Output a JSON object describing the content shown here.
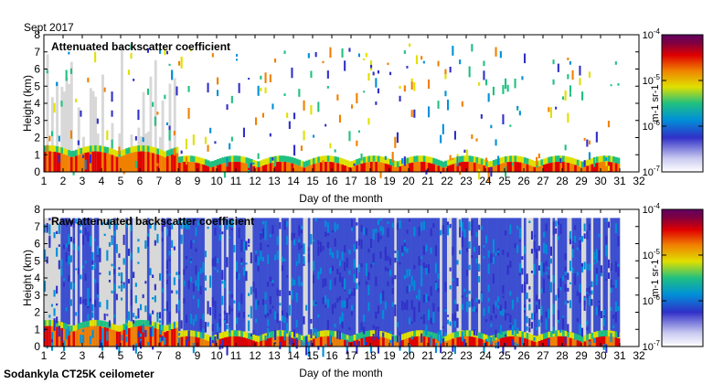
{
  "header": {
    "month_label": "Sept 2017"
  },
  "footer": {
    "instrument_label": "Sodankyla CT25K ceilometer"
  },
  "chart_data": [
    {
      "type": "heatmap",
      "title": "Attenuated backscatter coefficient",
      "xlabel": "Day of the month",
      "ylabel": "Height (km)",
      "xlim": [
        1,
        32
      ],
      "ylim": [
        0,
        8
      ],
      "xticks": [
        1,
        2,
        3,
        4,
        5,
        6,
        7,
        8,
        9,
        10,
        11,
        12,
        13,
        14,
        15,
        16,
        17,
        18,
        19,
        20,
        21,
        22,
        23,
        24,
        25,
        26,
        27,
        28,
        29,
        30,
        31,
        32
      ],
      "yticks": [
        0,
        1,
        2,
        3,
        4,
        5,
        6,
        7,
        8
      ],
      "data_extent_days": [
        1,
        31
      ],
      "data_extent_km": [
        0,
        7.5
      ],
      "colorbar": {
        "scale": "log",
        "range": [
          1e-07,
          0.0001
        ],
        "ticks": [
          "10-7",
          "10-6",
          "10-5",
          "10-4"
        ],
        "unit_label": "m-1 sr-1",
        "colors": [
          "#ffffff",
          "#c8c8f0",
          "#3030c8",
          "#0090d8",
          "#20c080",
          "#e0e000",
          "#f08000",
          "#e00000",
          "#800040",
          "#600060"
        ]
      }
    },
    {
      "type": "heatmap",
      "title": "Raw attenuated backscatter coefficient",
      "xlabel": "Day of the month",
      "ylabel": "Height (km)",
      "xlim": [
        1,
        32
      ],
      "ylim": [
        0,
        8
      ],
      "xticks": [
        1,
        2,
        3,
        4,
        5,
        6,
        7,
        8,
        9,
        10,
        11,
        12,
        13,
        14,
        15,
        16,
        17,
        18,
        19,
        20,
        21,
        22,
        23,
        24,
        25,
        26,
        27,
        28,
        29,
        30,
        31,
        32
      ],
      "yticks": [
        0,
        1,
        2,
        3,
        4,
        5,
        6,
        7,
        8
      ],
      "data_extent_days": [
        1,
        31
      ],
      "data_extent_km": [
        0,
        7.5
      ],
      "colorbar": {
        "scale": "log",
        "range": [
          1e-07,
          0.0001
        ],
        "ticks": [
          "10-7",
          "10-6",
          "10-5",
          "10-4"
        ],
        "unit_label": "m-1 sr-1",
        "colors": [
          "#ffffff",
          "#c8c8f0",
          "#3030c8",
          "#0090d8",
          "#20c080",
          "#e0e000",
          "#f08000",
          "#e00000",
          "#800040",
          "#600060"
        ]
      }
    }
  ]
}
